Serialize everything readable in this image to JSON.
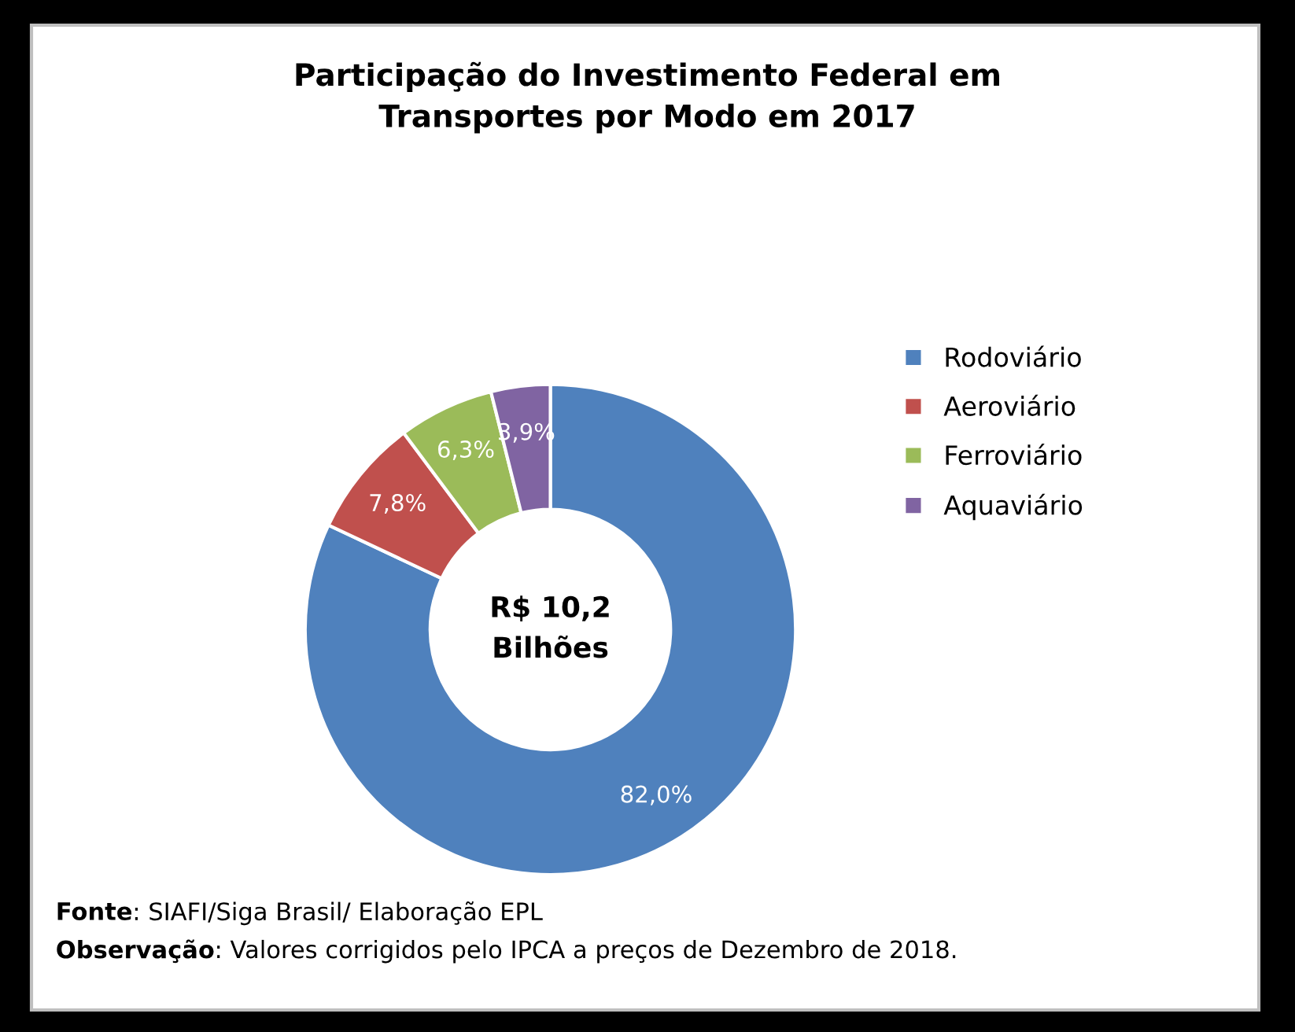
{
  "chart_data": {
    "type": "donut",
    "title": "Participação do Investimento Federal em\nTransportes por Modo em 2017",
    "categories": [
      "Rodoviário",
      "Aeroviário",
      "Ferroviário",
      "Aquaviário"
    ],
    "values": [
      82.0,
      7.8,
      6.3,
      3.9
    ],
    "colors": [
      "#4f81bd",
      "#c0504d",
      "#9bbb59",
      "#8064a2"
    ],
    "value_labels": [
      "82,0%",
      "7,8%",
      "6,3%",
      "3,9%"
    ],
    "legend": "right",
    "annotations": [
      "R$ 10,2\nBilhões",
      "Fonte: SIAFI/Siga Brasil/ Elaboração EPL",
      "Observação: Valores corrigidos pelo IPCA a preços de Dezembro de 2018."
    ]
  }
}
